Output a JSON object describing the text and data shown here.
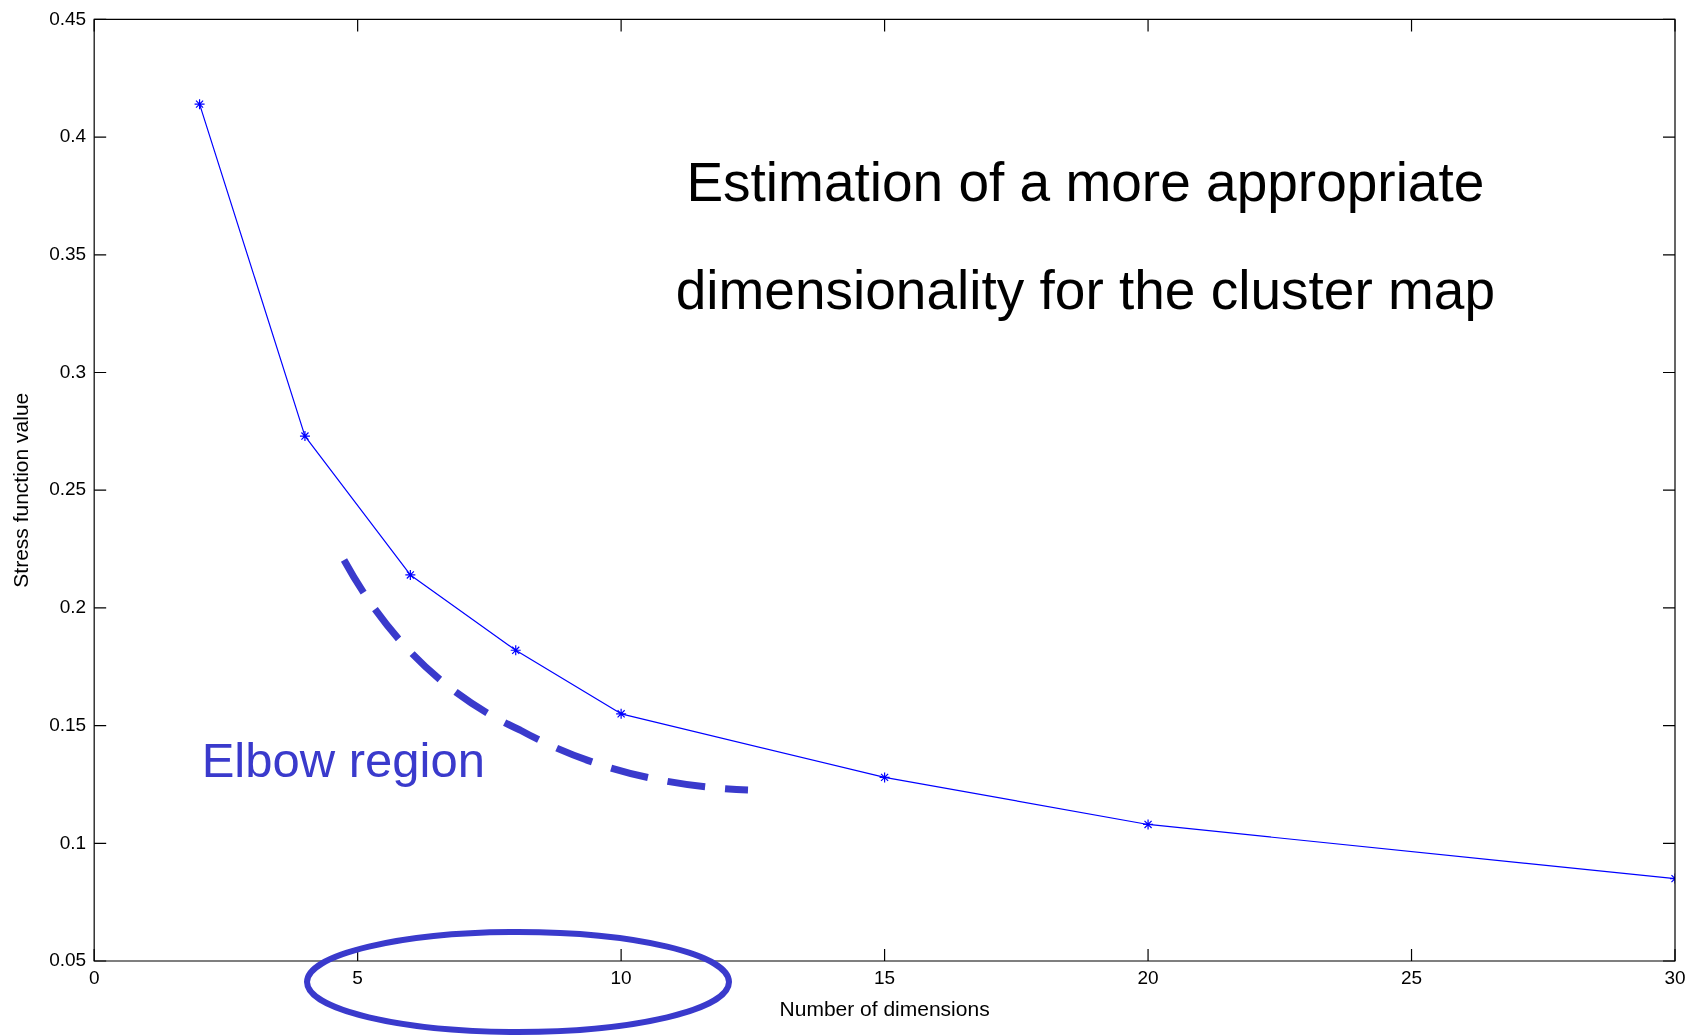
{
  "chart_data": {
    "type": "line",
    "title": "Estimation of a more appropriate dimensionality for the cluster map",
    "xlabel": "Number of dimensions",
    "ylabel": "Stress function value",
    "annotations": [
      "Elbow region"
    ],
    "x": [
      2,
      4,
      6,
      8,
      10,
      15,
      20,
      30
    ],
    "series": [
      {
        "color": "#0000ff",
        "values": [
          0.414,
          0.273,
          0.214,
          0.182,
          0.155,
          0.128,
          0.108,
          0.085
        ]
      }
    ],
    "xlim": [
      0,
      30
    ],
    "xticks": [
      0,
      5,
      10,
      15,
      20,
      25,
      30
    ],
    "ylim": [
      0.05,
      0.45
    ],
    "yticks": [
      0.05,
      0.1,
      0.15,
      0.2,
      0.25,
      0.3,
      0.35,
      0.4,
      0.45
    ],
    "grid": false,
    "legend": false,
    "marker": "cross",
    "line_style": "solid"
  }
}
